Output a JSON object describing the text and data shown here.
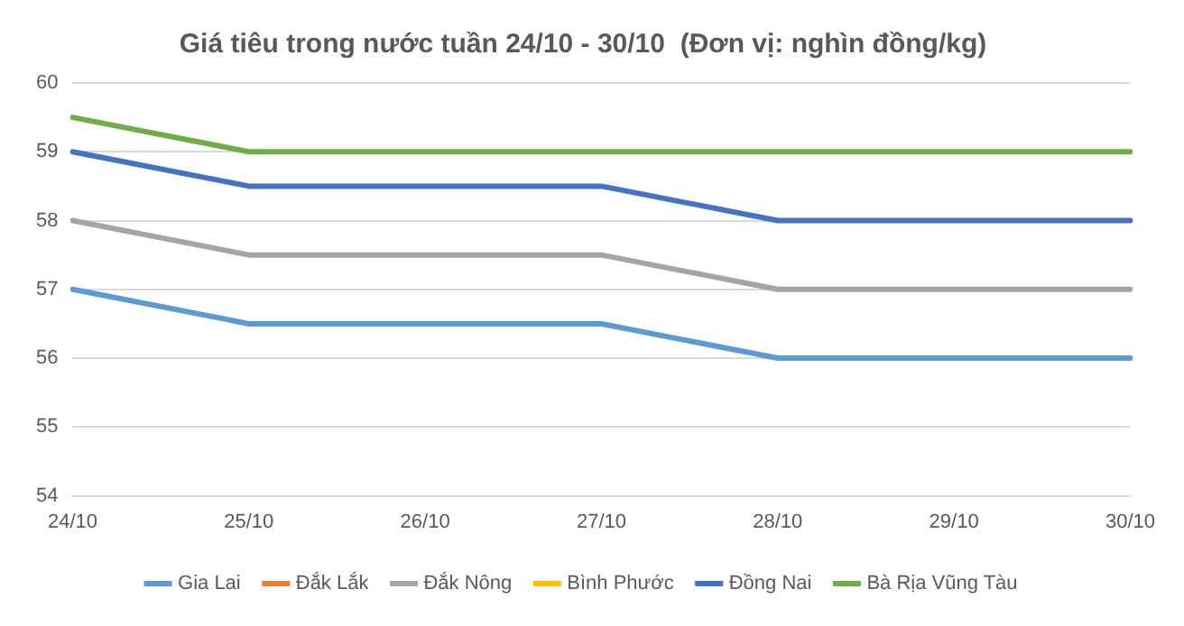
{
  "chart_data": {
    "type": "line",
    "title": "Giá tiêu trong nước tuần 24/10 - 30/10  (Đơn vị: nghìn đồng/kg)",
    "categories": [
      "24/10",
      "25/10",
      "26/10",
      "27/10",
      "28/10",
      "29/10",
      "30/10"
    ],
    "series": [
      {
        "name": "Gia Lai",
        "color": "#5b9bd5",
        "values": [
          57,
          56.5,
          56.5,
          56.5,
          56,
          56,
          56
        ]
      },
      {
        "name": "Đắk Lắk",
        "color": "#ed7d31",
        "values": [
          null,
          null,
          null,
          null,
          null,
          null,
          null
        ]
      },
      {
        "name": "Đắk Nông",
        "color": "#a5a5a5",
        "values": [
          58,
          57.5,
          57.5,
          57.5,
          57,
          57,
          57
        ]
      },
      {
        "name": "Bình Phước",
        "color": "#ffc000",
        "values": [
          null,
          null,
          null,
          null,
          null,
          null,
          null
        ]
      },
      {
        "name": "Đồng Nai",
        "color": "#4472c4",
        "values": [
          59,
          58.5,
          58.5,
          58.5,
          58,
          58,
          58
        ]
      },
      {
        "name": "Bà Rịa Vũng Tàu",
        "color": "#70ad47",
        "values": [
          59.5,
          59,
          59,
          59,
          59,
          59,
          59
        ]
      }
    ],
    "ylim": [
      54,
      60
    ],
    "yticks": [
      54,
      55,
      56,
      57,
      58,
      59,
      60
    ],
    "grid": "y",
    "legend": "bottom",
    "marker": "none",
    "line_style": "solid"
  }
}
